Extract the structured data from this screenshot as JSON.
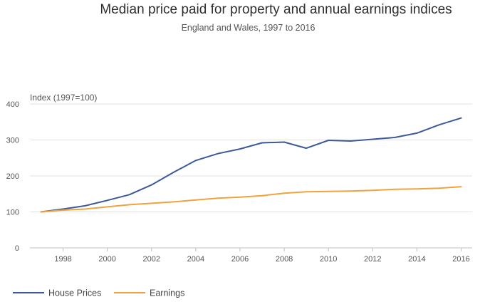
{
  "chart_data": {
    "type": "line",
    "title": "Median price paid for property and annual earnings indices",
    "subtitle": "England and Wales, 1997 to 2016",
    "ylabel": "Index (1997=100)",
    "xlabel": "",
    "ylim": [
      0,
      400
    ],
    "xlim": [
      1996.5,
      2016.5
    ],
    "yticks": [
      "0",
      "100",
      "200",
      "300",
      "400"
    ],
    "xticks": [
      "1998",
      "2000",
      "2002",
      "2004",
      "2006",
      "2008",
      "2010",
      "2012",
      "2014",
      "2016"
    ],
    "grid": true,
    "legend": "bottom-left",
    "x": [
      1997,
      1998,
      1999,
      2000,
      2001,
      2002,
      2003,
      2004,
      2005,
      2006,
      2007,
      2008,
      2009,
      2010,
      2011,
      2012,
      2013,
      2014,
      2015,
      2016
    ],
    "series": [
      {
        "name": "House Prices",
        "color": "#3c5a9a",
        "values": [
          100,
          108,
          117,
          132,
          148,
          175,
          210,
          243,
          262,
          275,
          292,
          294,
          277,
          299,
          297,
          302,
          307,
          319,
          342,
          361
        ]
      },
      {
        "name": "Earnings",
        "color": "#f0a23c",
        "values": [
          100,
          105,
          108,
          114,
          120,
          124,
          128,
          133,
          138,
          141,
          145,
          152,
          156,
          157,
          158,
          160,
          163,
          164,
          166,
          170
        ]
      }
    ]
  }
}
